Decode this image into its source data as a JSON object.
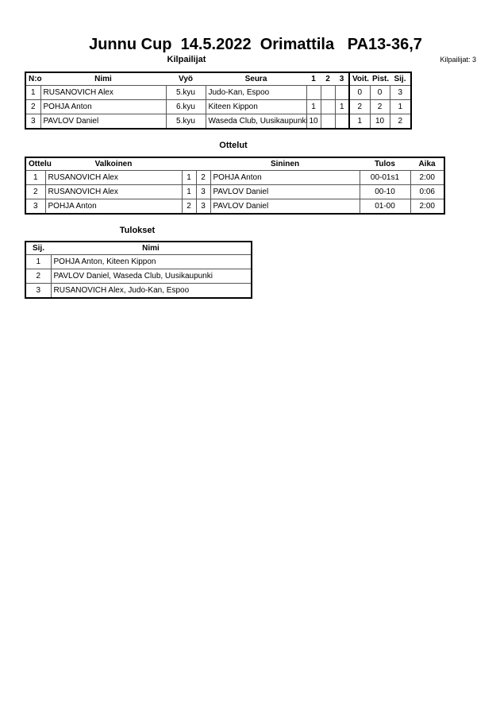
{
  "title": "Junnu Cup  14.5.2022  Orimattila   PA13-36,7",
  "competitors": {
    "heading": "Kilpailijat",
    "count_label": "Kilpailijat: 3",
    "columns": [
      "N:o",
      "Nimi",
      "Vyö",
      "Seura",
      "1",
      "2",
      "3",
      "Voit.",
      "Pist.",
      "Sij."
    ],
    "rows": [
      [
        "1",
        "RUSANOVICH Alex",
        "5.kyu",
        "Judo-Kan, Espoo",
        "",
        "",
        "",
        "0",
        "0",
        "3"
      ],
      [
        "2",
        "POHJA Anton",
        "6.kyu",
        "Kiteen Kippon",
        "1",
        "",
        "1",
        "2",
        "2",
        "1"
      ],
      [
        "3",
        "PAVLOV Daniel",
        "5.kyu",
        "Waseda Club, Uusikaupunki",
        "10",
        "",
        "",
        "1",
        "10",
        "2"
      ]
    ]
  },
  "matches": {
    "heading": "Ottelut",
    "columns": [
      "Ottelu",
      "Valkoinen",
      "",
      "",
      "Sininen",
      "Tulos",
      "Aika"
    ],
    "rows": [
      [
        "1",
        "RUSANOVICH Alex",
        "1",
        "2",
        "POHJA Anton",
        "00-01s1",
        "2:00"
      ],
      [
        "2",
        "RUSANOVICH Alex",
        "1",
        "3",
        "PAVLOV Daniel",
        "00-10",
        "0:06"
      ],
      [
        "3",
        "POHJA Anton",
        "2",
        "3",
        "PAVLOV Daniel",
        "01-00",
        "2:00"
      ]
    ]
  },
  "results": {
    "heading": "Tulokset",
    "columns": [
      "Sij.",
      "Nimi"
    ],
    "rows": [
      [
        "1",
        "POHJA Anton, Kiteen Kippon"
      ],
      [
        "2",
        "PAVLOV Daniel, Waseda Club, Uusikaupunki"
      ],
      [
        "3",
        "RUSANOVICH Alex, Judo-Kan, Espoo"
      ]
    ]
  }
}
